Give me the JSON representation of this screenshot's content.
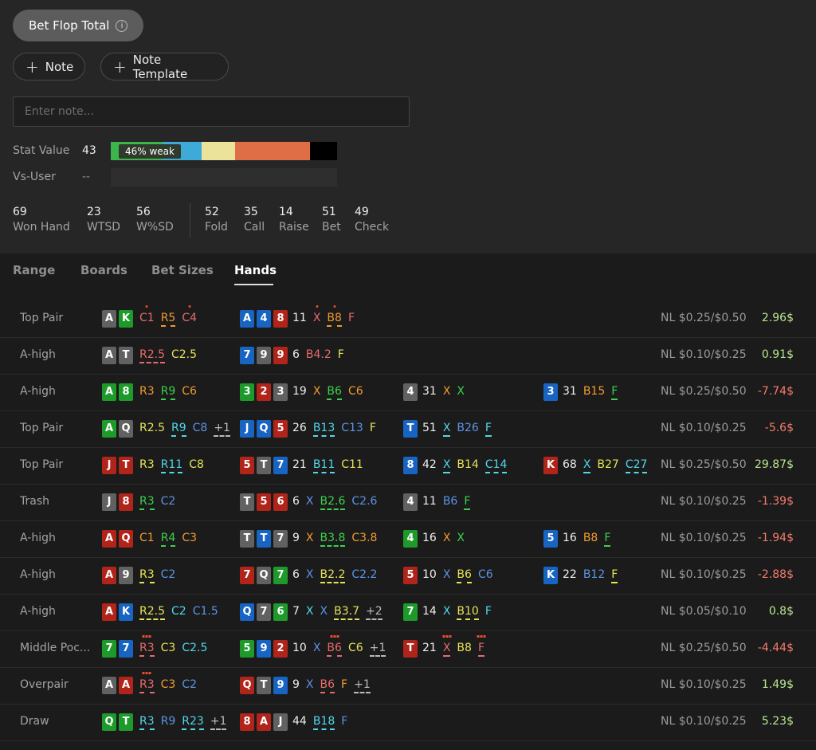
{
  "header": {
    "stat_name": "Bet Flop Total",
    "info_icon": "i"
  },
  "actions": {
    "note": "Note",
    "note_template": "Note Template",
    "note_placeholder": "Enter note..."
  },
  "stat": {
    "label": "Stat Value",
    "value": "43",
    "badge": "46% weak",
    "vs_label": "Vs-User",
    "vs_value": "--",
    "segments": [
      {
        "color": "#3cb64a",
        "pct": 23
      },
      {
        "color": "#3eaad8",
        "pct": 17
      },
      {
        "color": "#ebe39a",
        "pct": 15
      },
      {
        "color": "#df6d46",
        "pct": 33
      },
      {
        "color": "#000000",
        "pct": 12
      }
    ]
  },
  "metrics": [
    {
      "n": "69",
      "l": "Won Hand"
    },
    {
      "n": "23",
      "l": "WTSD"
    },
    {
      "n": "56",
      "l": "W%SD"
    },
    {
      "n": "52",
      "l": "Fold"
    },
    {
      "n": "35",
      "l": "Call"
    },
    {
      "n": "14",
      "l": "Raise"
    },
    {
      "n": "51",
      "l": "Bet"
    },
    {
      "n": "49",
      "l": "Check"
    }
  ],
  "tabs": [
    "Range",
    "Boards",
    "Bet Sizes",
    "Hands"
  ],
  "active_tab": "Hands",
  "colors": {
    "red": "#e84d2f",
    "orange": "#f29a2e",
    "yellow": "#e5e356",
    "green": "#3cd24d",
    "cyan": "#4fd7ea",
    "blue": "#5d93e6",
    "pink": "#e86a6a",
    "grey": "#bbbbbb",
    "pos": "#b9e68e",
    "neg": "#f47b6a"
  },
  "hands": [
    {
      "cat": "Top Pair",
      "stake": "NL $0.25/$0.50",
      "pnl": "2.96$",
      "pos": true,
      "g1": {
        "cards": [
          [
            "A",
            "#616161"
          ],
          [
            "K",
            "#1d9a2a"
          ]
        ],
        "toks": [
          [
            "C1",
            "pink",
            "dot-red"
          ],
          [
            "R5",
            "orange",
            "u"
          ],
          [
            "C4",
            "pink",
            "dot-red"
          ]
        ]
      },
      "g2": {
        "cards": [
          [
            "A",
            "#1764c2"
          ],
          [
            "4",
            "#1764c2"
          ],
          [
            "8",
            "#b0241a"
          ]
        ],
        "n": "11",
        "toks": [
          [
            "X",
            "pink",
            "dot-red"
          ],
          [
            "B8",
            "orange",
            "u dot-red"
          ],
          [
            "F",
            "pink",
            ""
          ]
        ]
      }
    },
    {
      "cat": "A-high",
      "stake": "NL $0.10/$0.25",
      "pnl": "0.91$",
      "pos": true,
      "g1": {
        "cards": [
          [
            "A",
            "#616161"
          ],
          [
            "T",
            "#616161"
          ]
        ],
        "toks": [
          [
            "R2.5",
            "pink",
            "u"
          ],
          [
            "C2.5",
            "yellow",
            ""
          ]
        ]
      },
      "g2": {
        "cards": [
          [
            "7",
            "#1764c2"
          ],
          [
            "9",
            "#616161"
          ],
          [
            "9",
            "#b0241a"
          ]
        ],
        "n": "6",
        "toks": [
          [
            "B4.2",
            "pink",
            ""
          ],
          [
            "F",
            "yellow",
            ""
          ]
        ]
      }
    },
    {
      "cat": "A-high",
      "stake": "NL $0.25/$0.50",
      "pnl": "-7.74$",
      "pos": false,
      "g1": {
        "cards": [
          [
            "A",
            "#1d9a2a"
          ],
          [
            "8",
            "#1d9a2a"
          ]
        ],
        "toks": [
          [
            "R3",
            "orange",
            ""
          ],
          [
            "R9",
            "green",
            "u"
          ],
          [
            "C6",
            "orange",
            ""
          ]
        ]
      },
      "g2": {
        "cards": [
          [
            "3",
            "#1d9a2a"
          ],
          [
            "2",
            "#b0241a"
          ],
          [
            "3",
            "#616161"
          ]
        ],
        "n": "19",
        "toks": [
          [
            "X",
            "orange",
            ""
          ],
          [
            "B6",
            "green",
            "u"
          ],
          [
            "C6",
            "orange",
            ""
          ]
        ]
      },
      "g3": {
        "cards": [
          [
            "4",
            "#616161"
          ]
        ],
        "n": "31",
        "toks": [
          [
            "X",
            "orange",
            ""
          ],
          [
            "X",
            "green",
            ""
          ]
        ]
      },
      "g4": {
        "cards": [
          [
            "3",
            "#1764c2"
          ]
        ],
        "n": "31",
        "toks": [
          [
            "B15",
            "orange",
            ""
          ],
          [
            "F",
            "green",
            "u2"
          ]
        ]
      }
    },
    {
      "cat": "Top Pair",
      "stake": "NL $0.10/$0.25",
      "pnl": "-5.6$",
      "pos": false,
      "g1": {
        "cards": [
          [
            "A",
            "#1d9a2a"
          ],
          [
            "Q",
            "#616161"
          ]
        ],
        "toks": [
          [
            "R2.5",
            "yellow",
            ""
          ],
          [
            "R9",
            "cyan",
            "u"
          ],
          [
            "C8",
            "blue",
            ""
          ],
          [
            "+1",
            "grey",
            "u"
          ]
        ]
      },
      "g2": {
        "cards": [
          [
            "J",
            "#1764c2"
          ],
          [
            "Q",
            "#1764c2"
          ],
          [
            "5",
            "#b0241a"
          ]
        ],
        "n": "26",
        "toks": [
          [
            "B13",
            "cyan",
            "u"
          ],
          [
            "C13",
            "blue",
            ""
          ],
          [
            "F",
            "yellow",
            ""
          ]
        ]
      },
      "g3": {
        "cards": [
          [
            "T",
            "#1764c2"
          ]
        ],
        "n": "51",
        "toks": [
          [
            "X",
            "cyan",
            "u"
          ],
          [
            "B26",
            "blue",
            ""
          ],
          [
            "F",
            "cyan",
            "u"
          ]
        ]
      }
    },
    {
      "cat": "Top Pair",
      "stake": "NL $0.25/$0.50",
      "pnl": "29.87$",
      "pos": true,
      "g1": {
        "cards": [
          [
            "J",
            "#b0241a"
          ],
          [
            "T",
            "#b0241a"
          ]
        ],
        "toks": [
          [
            "R3",
            "yellow",
            ""
          ],
          [
            "R11",
            "cyan",
            "u"
          ],
          [
            "C8",
            "yellow",
            ""
          ]
        ]
      },
      "g2": {
        "cards": [
          [
            "5",
            "#b0241a"
          ],
          [
            "T",
            "#616161"
          ],
          [
            "7",
            "#1764c2"
          ]
        ],
        "n": "21",
        "toks": [
          [
            "B11",
            "cyan",
            "u"
          ],
          [
            "C11",
            "yellow",
            ""
          ]
        ]
      },
      "g3": {
        "cards": [
          [
            "8",
            "#1764c2"
          ]
        ],
        "n": "42",
        "toks": [
          [
            "X",
            "cyan",
            "u"
          ],
          [
            "B14",
            "yellow",
            ""
          ],
          [
            "C14",
            "cyan",
            "u"
          ]
        ]
      },
      "g4": {
        "cards": [
          [
            "K",
            "#b0241a"
          ]
        ],
        "n": "68",
        "toks": [
          [
            "X",
            "cyan",
            "u"
          ],
          [
            "B27",
            "yellow",
            ""
          ],
          [
            "C27",
            "cyan",
            "u"
          ]
        ]
      }
    },
    {
      "cat": "Trash",
      "stake": "NL $0.10/$0.25",
      "pnl": "-1.39$",
      "pos": false,
      "g1": {
        "cards": [
          [
            "J",
            "#616161"
          ],
          [
            "8",
            "#b0241a"
          ]
        ],
        "toks": [
          [
            "R3",
            "green",
            "u"
          ],
          [
            "C2",
            "blue",
            ""
          ]
        ]
      },
      "g2": {
        "cards": [
          [
            "T",
            "#616161"
          ],
          [
            "5",
            "#b0241a"
          ],
          [
            "6",
            "#b0241a"
          ]
        ],
        "n": "6",
        "toks": [
          [
            "X",
            "blue",
            ""
          ],
          [
            "B2.6",
            "green",
            "u"
          ],
          [
            "C2.6",
            "blue",
            ""
          ]
        ]
      },
      "g3": {
        "cards": [
          [
            "4",
            "#616161"
          ]
        ],
        "n": "11",
        "toks": [
          [
            "B6",
            "blue",
            ""
          ],
          [
            "F",
            "green",
            "u2"
          ]
        ]
      }
    },
    {
      "cat": "A-high",
      "stake": "NL $0.10/$0.25",
      "pnl": "-1.94$",
      "pos": false,
      "g1": {
        "cards": [
          [
            "A",
            "#b0241a"
          ],
          [
            "Q",
            "#b0241a"
          ]
        ],
        "toks": [
          [
            "C1",
            "orange",
            ""
          ],
          [
            "R4",
            "green",
            "u"
          ],
          [
            "C3",
            "orange",
            ""
          ]
        ]
      },
      "g2": {
        "cards": [
          [
            "T",
            "#616161"
          ],
          [
            "T",
            "#1764c2"
          ],
          [
            "7",
            "#616161"
          ]
        ],
        "n": "9",
        "toks": [
          [
            "X",
            "orange",
            ""
          ],
          [
            "B3.8",
            "green",
            "u"
          ],
          [
            "C3.8",
            "orange",
            ""
          ]
        ]
      },
      "g3": {
        "cards": [
          [
            "4",
            "#1d9a2a"
          ]
        ],
        "n": "16",
        "toks": [
          [
            "X",
            "orange",
            ""
          ],
          [
            "X",
            "green",
            ""
          ]
        ]
      },
      "g4": {
        "cards": [
          [
            "5",
            "#1764c2"
          ]
        ],
        "n": "16",
        "toks": [
          [
            "B8",
            "orange",
            ""
          ],
          [
            "F",
            "green",
            "u2"
          ]
        ]
      }
    },
    {
      "cat": "A-high",
      "stake": "NL $0.10/$0.25",
      "pnl": "-2.88$",
      "pos": false,
      "g1": {
        "cards": [
          [
            "A",
            "#b0241a"
          ],
          [
            "9",
            "#616161"
          ]
        ],
        "toks": [
          [
            "R3",
            "yellow",
            "u"
          ],
          [
            "C2",
            "blue",
            ""
          ]
        ]
      },
      "g2": {
        "cards": [
          [
            "7",
            "#b0241a"
          ],
          [
            "Q",
            "#616161"
          ],
          [
            "7",
            "#1d9a2a"
          ]
        ],
        "n": "6",
        "toks": [
          [
            "X",
            "blue",
            ""
          ],
          [
            "B2.2",
            "yellow",
            "u"
          ],
          [
            "C2.2",
            "blue",
            ""
          ]
        ]
      },
      "g3": {
        "cards": [
          [
            "5",
            "#b0241a"
          ]
        ],
        "n": "10",
        "toks": [
          [
            "X",
            "blue",
            ""
          ],
          [
            "B6",
            "yellow",
            "u"
          ],
          [
            "C6",
            "blue",
            ""
          ]
        ]
      },
      "g4": {
        "cards": [
          [
            "K",
            "#1764c2"
          ]
        ],
        "n": "22",
        "toks": [
          [
            "B12",
            "blue",
            ""
          ],
          [
            "F",
            "yellow",
            "u2"
          ]
        ]
      }
    },
    {
      "cat": "A-high",
      "stake": "NL $0.05/$0.10",
      "pnl": "0.8$",
      "pos": true,
      "g1": {
        "cards": [
          [
            "A",
            "#b0241a"
          ],
          [
            "K",
            "#1764c2"
          ]
        ],
        "toks": [
          [
            "R2.5",
            "yellow",
            "u"
          ],
          [
            "C2",
            "cyan",
            ""
          ],
          [
            "C1.5",
            "blue",
            ""
          ]
        ]
      },
      "g2": {
        "cards": [
          [
            "Q",
            "#1764c2"
          ],
          [
            "7",
            "#616161"
          ],
          [
            "6",
            "#1d9a2a"
          ]
        ],
        "n": "7",
        "toks": [
          [
            "X",
            "cyan",
            ""
          ],
          [
            "X",
            "blue",
            ""
          ],
          [
            "B3.7",
            "yellow",
            "u"
          ],
          [
            "+2",
            "grey",
            "u"
          ]
        ]
      },
      "g3": {
        "cards": [
          [
            "7",
            "#1d9a2a"
          ]
        ],
        "n": "14",
        "toks": [
          [
            "X",
            "cyan",
            ""
          ],
          [
            "B10",
            "yellow",
            "u"
          ],
          [
            "F",
            "cyan",
            ""
          ]
        ]
      }
    },
    {
      "cat": "Middle Poc...",
      "stake": "NL $0.25/$0.50",
      "pnl": "-4.44$",
      "pos": false,
      "g1": {
        "cards": [
          [
            "7",
            "#1d9a2a"
          ],
          [
            "7",
            "#1764c2"
          ]
        ],
        "toks": [
          [
            "R3",
            "pink",
            "u dots"
          ],
          [
            "C3",
            "yellow",
            ""
          ],
          [
            "C2.5",
            "cyan",
            ""
          ]
        ]
      },
      "g2": {
        "cards": [
          [
            "5",
            "#1d9a2a"
          ],
          [
            "9",
            "#1764c2"
          ],
          [
            "2",
            "#b0241a"
          ]
        ],
        "n": "10",
        "toks": [
          [
            "X",
            "blue",
            ""
          ],
          [
            "B6",
            "pink",
            "u dots"
          ],
          [
            "C6",
            "yellow",
            ""
          ],
          [
            "+1",
            "grey",
            "u"
          ]
        ]
      },
      "g3": {
        "cards": [
          [
            "T",
            "#b0241a"
          ]
        ],
        "n": "21",
        "toks": [
          [
            "X",
            "pink",
            "u dots"
          ],
          [
            "B8",
            "yellow",
            ""
          ],
          [
            "F",
            "pink",
            "u dots"
          ]
        ]
      }
    },
    {
      "cat": "Overpair",
      "stake": "NL $0.10/$0.25",
      "pnl": "1.49$",
      "pos": true,
      "g1": {
        "cards": [
          [
            "A",
            "#616161"
          ],
          [
            "A",
            "#b0241a"
          ]
        ],
        "toks": [
          [
            "R3",
            "pink",
            "u dots"
          ],
          [
            "C3",
            "orange",
            ""
          ],
          [
            "C2",
            "blue",
            ""
          ]
        ]
      },
      "g2": {
        "cards": [
          [
            "Q",
            "#b0241a"
          ],
          [
            "T",
            "#616161"
          ],
          [
            "9",
            "#1764c2"
          ]
        ],
        "n": "9",
        "toks": [
          [
            "X",
            "blue",
            ""
          ],
          [
            "B6",
            "pink",
            "u"
          ],
          [
            "F",
            "orange",
            ""
          ],
          [
            "+1",
            "grey",
            "u"
          ]
        ]
      }
    },
    {
      "cat": "Draw",
      "stake": "NL $0.10/$0.25",
      "pnl": "5.23$",
      "pos": true,
      "g1": {
        "cards": [
          [
            "Q",
            "#1d9a2a"
          ],
          [
            "T",
            "#1d9a2a"
          ]
        ],
        "toks": [
          [
            "R3",
            "cyan",
            "u"
          ],
          [
            "R9",
            "blue",
            ""
          ],
          [
            "R23",
            "cyan",
            "u"
          ],
          [
            "+1",
            "grey",
            "u"
          ]
        ]
      },
      "g2": {
        "cards": [
          [
            "8",
            "#b0241a"
          ],
          [
            "A",
            "#b0241a"
          ],
          [
            "J",
            "#616161"
          ]
        ],
        "n": "44",
        "toks": [
          [
            "B18",
            "cyan",
            "u"
          ],
          [
            "F",
            "blue",
            ""
          ]
        ]
      }
    }
  ]
}
